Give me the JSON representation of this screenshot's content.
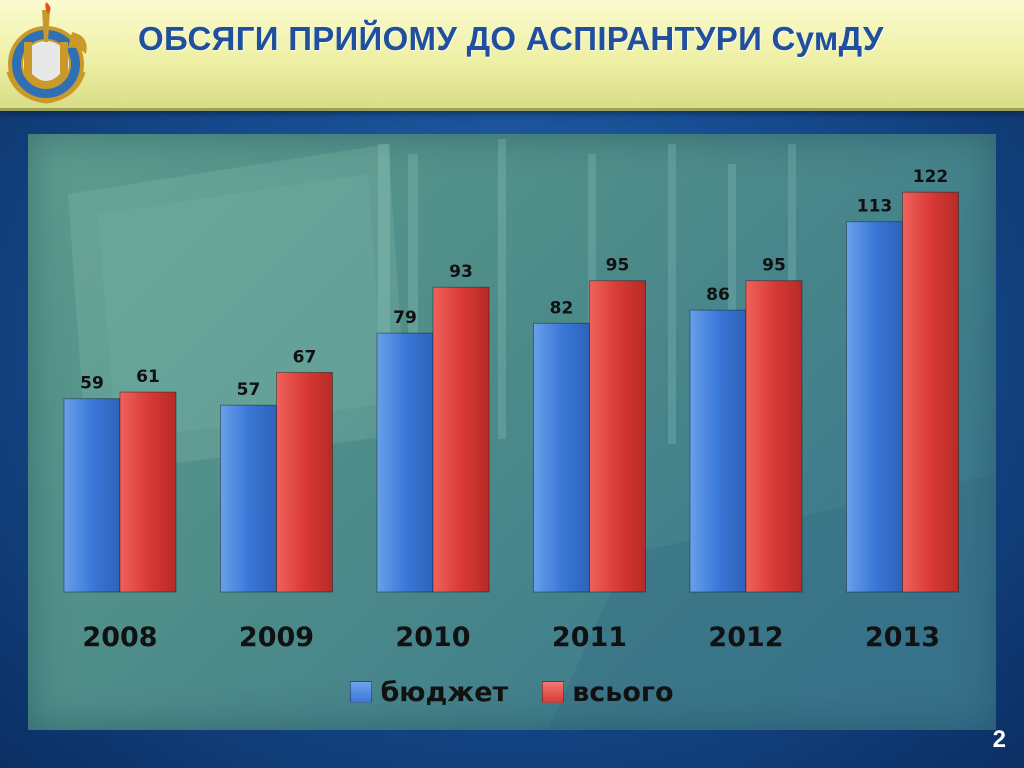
{
  "slide": {
    "title": "ОБСЯГИ ПРИЙОМУ ДО АСПІРАНТУРИ СумДУ",
    "page_number": "2",
    "logo_icon": "university-emblem-icon"
  },
  "colors": {
    "header_bg": "#eef0a6",
    "title": "#1f4f9e",
    "budget": "#3b78d8",
    "total": "#d93a36",
    "slide_bg": "#174e93"
  },
  "chart_data": {
    "type": "bar",
    "title": "",
    "xlabel": "",
    "ylabel": "",
    "categories": [
      "2008",
      "2009",
      "2010",
      "2011",
      "2012",
      "2013"
    ],
    "series": [
      {
        "name": "бюджет",
        "values": [
          59,
          57,
          79,
          82,
          86,
          113
        ],
        "color": "#3b78d8"
      },
      {
        "name": "всього",
        "values": [
          61,
          67,
          93,
          95,
          95,
          122
        ],
        "color": "#d93a36"
      }
    ],
    "ylim": [
      0,
      130
    ],
    "grid": false,
    "legend": "bottom",
    "data_labels": true
  }
}
